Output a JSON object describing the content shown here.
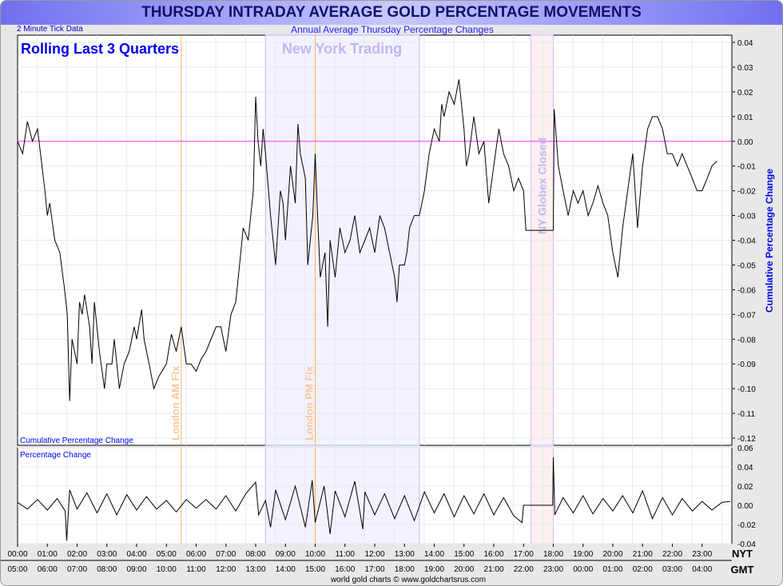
{
  "chart_data": [
    {
      "type": "line",
      "title": "THURSDAY INTRADAY AVERAGE GOLD PERCENTAGE MOVEMENTS",
      "subtitle": "Annual Average Thursday Percentage Changes",
      "note": "2 Minute Tick Data",
      "heading": "Rolling Last 3 Quarters",
      "panel_label": "Cumulative Percentage Change",
      "ylabel": "Cumulative Percentage Change",
      "ylim": [
        -0.12,
        0.04
      ],
      "yticks": [
        "0.04",
        "0.03",
        "0.02",
        "0.01",
        "0.00",
        "-0.01",
        "-0.02",
        "-0.03",
        "-0.04",
        "-0.05",
        "-0.06",
        "-0.07",
        "-0.08",
        "-0.09",
        "-0.10",
        "-0.11",
        "-0.12"
      ],
      "annotations": {
        "ny_trading": "New York Trading",
        "london_am": "London AM Fix",
        "london_pm": "London PM Fix",
        "globex": "NY Globex Closed"
      },
      "x_hours": [
        0,
        0.17,
        0.33,
        0.5,
        0.67,
        0.75,
        0.92,
        1,
        1.08,
        1.25,
        1.42,
        1.58,
        1.67,
        1.75,
        1.83,
        2,
        2.08,
        2.17,
        2.25,
        2.42,
        2.5,
        2.58,
        2.75,
        2.92,
        3,
        3.17,
        3.25,
        3.42,
        3.58,
        3.75,
        3.92,
        4,
        4.17,
        4.25,
        4.42,
        4.58,
        4.75,
        5,
        5.17,
        5.33,
        5.5,
        5.67,
        5.83,
        6,
        6.17,
        6.33,
        6.5,
        6.67,
        6.83,
        7,
        7.17,
        7.33,
        7.5,
        7.58,
        7.75,
        7.92,
        8,
        8.08,
        8.17,
        8.25,
        8.33,
        8.5,
        8.67,
        8.83,
        8.92,
        9,
        9.17,
        9.33,
        9.42,
        9.5,
        9.67,
        9.75,
        9.92,
        10,
        10.08,
        10.17,
        10.33,
        10.42,
        10.5,
        10.67,
        10.83,
        11,
        11.17,
        11.33,
        11.5,
        11.67,
        11.83,
        12,
        12.17,
        12.33,
        12.5,
        12.67,
        12.75,
        12.83,
        13,
        13.08,
        13.17,
        13.33,
        13.5,
        13.67,
        13.83,
        14,
        14.17,
        14.25,
        14.33,
        14.5,
        14.67,
        14.83,
        15,
        15.08,
        15.17,
        15.33,
        15.5,
        15.67,
        15.83,
        16,
        16.17,
        16.33,
        16.5,
        16.67,
        16.83,
        17,
        17.08,
        17.25,
        18,
        18.03,
        18.17,
        18.33,
        18.5,
        18.67,
        18.83,
        19,
        19.17,
        19.33,
        19.5,
        19.67,
        19.83,
        20,
        20.17,
        20.33,
        20.5,
        20.67,
        20.83,
        21,
        21.17,
        21.33,
        21.5,
        21.67,
        21.83,
        22,
        22.17,
        22.33,
        22.5,
        22.67,
        22.83,
        23,
        23.17,
        23.33,
        23.5
      ],
      "values": [
        0,
        -0.005,
        0.008,
        0,
        0.005,
        -0.003,
        -0.02,
        -0.03,
        -0.025,
        -0.04,
        -0.045,
        -0.06,
        -0.07,
        -0.105,
        -0.08,
        -0.09,
        -0.065,
        -0.07,
        -0.062,
        -0.075,
        -0.09,
        -0.065,
        -0.085,
        -0.1,
        -0.09,
        -0.09,
        -0.08,
        -0.1,
        -0.09,
        -0.085,
        -0.075,
        -0.08,
        -0.068,
        -0.08,
        -0.09,
        -0.1,
        -0.095,
        -0.09,
        -0.078,
        -0.085,
        -0.075,
        -0.09,
        -0.09,
        -0.093,
        -0.088,
        -0.085,
        -0.08,
        -0.075,
        -0.075,
        -0.085,
        -0.07,
        -0.065,
        -0.045,
        -0.035,
        -0.04,
        -0.02,
        0.018,
        0,
        -0.01,
        0.005,
        -0.005,
        -0.03,
        -0.05,
        -0.02,
        -0.025,
        -0.04,
        -0.01,
        -0.025,
        0.007,
        -0.005,
        -0.015,
        -0.05,
        -0.03,
        -0.005,
        -0.03,
        -0.055,
        -0.045,
        -0.075,
        -0.04,
        -0.055,
        -0.035,
        -0.045,
        -0.04,
        -0.03,
        -0.045,
        -0.04,
        -0.035,
        -0.045,
        -0.03,
        -0.035,
        -0.045,
        -0.055,
        -0.065,
        -0.05,
        -0.05,
        -0.045,
        -0.035,
        -0.03,
        -0.03,
        -0.02,
        -0.005,
        0.005,
        0,
        0.015,
        0.01,
        0.02,
        0.015,
        0.025,
        0.005,
        -0.01,
        -0.005,
        0.01,
        -0.005,
        0,
        -0.025,
        -0.01,
        0.005,
        -0.005,
        -0.01,
        -0.02,
        -0.015,
        -0.02,
        -0.036,
        -0.036,
        -0.036,
        0.013,
        -0.01,
        -0.02,
        -0.03,
        -0.02,
        -0.025,
        -0.02,
        -0.03,
        -0.025,
        -0.018,
        -0.025,
        -0.03,
        -0.045,
        -0.055,
        -0.035,
        -0.02,
        -0.005,
        -0.035,
        -0.01,
        0.005,
        0.01,
        0.01,
        0.005,
        -0.005,
        -0.005,
        -0.01,
        -0.005,
        -0.01,
        -0.015,
        -0.02,
        -0.02,
        -0.015,
        -0.01,
        -0.008
      ],
      "reference_line": 0
    },
    {
      "type": "line",
      "panel_label": "Percentage Change",
      "ylim": [
        -0.04,
        0.06
      ],
      "yticks": [
        "0.06",
        "0.04",
        "0.02",
        "0.00",
        "-0.02",
        "-0.04"
      ],
      "x_hours": [
        0,
        0.33,
        0.67,
        1,
        1.33,
        1.6,
        1.65,
        1.75,
        2,
        2.33,
        2.67,
        3,
        3.33,
        3.67,
        4,
        4.33,
        4.67,
        5,
        5.33,
        5.67,
        6,
        6.33,
        6.67,
        7,
        7.33,
        7.67,
        8,
        8.1,
        8.33,
        8.5,
        8.67,
        9,
        9.33,
        9.67,
        9.9,
        10,
        10.3,
        10.5,
        10.67,
        11,
        11.33,
        11.6,
        11.67,
        12,
        12.33,
        12.67,
        13,
        13.33,
        13.67,
        14,
        14.33,
        14.67,
        15,
        15.33,
        15.67,
        16,
        16.33,
        16.67,
        16.95,
        17,
        17.25,
        17.98,
        18,
        18.05,
        18.33,
        18.67,
        19,
        19.33,
        19.67,
        20,
        20.33,
        20.67,
        21,
        21.33,
        21.67,
        22,
        22.33,
        22.67,
        23,
        23.33,
        23.67,
        23.95
      ],
      "values": [
        0.003,
        -0.004,
        0.006,
        -0.005,
        0.007,
        -0.006,
        -0.037,
        0.016,
        -0.004,
        0.013,
        -0.008,
        0.012,
        -0.01,
        0.011,
        -0.005,
        0.009,
        -0.004,
        0.005,
        -0.007,
        0.006,
        -0.003,
        0.006,
        -0.004,
        0.01,
        -0.006,
        0.012,
        0.024,
        -0.01,
        0.005,
        -0.023,
        0.016,
        -0.015,
        0.02,
        -0.023,
        0.026,
        -0.018,
        0.02,
        -0.03,
        0.015,
        -0.012,
        0.025,
        -0.025,
        0.014,
        -0.01,
        0.012,
        -0.014,
        0.01,
        -0.016,
        0.014,
        -0.008,
        0.012,
        -0.012,
        0.01,
        -0.009,
        0.012,
        -0.01,
        0.008,
        -0.011,
        -0.018,
        0,
        0,
        0,
        0.05,
        -0.01,
        0.008,
        -0.008,
        0.01,
        -0.009,
        0.007,
        -0.006,
        0.01,
        -0.008,
        0.015,
        -0.014,
        0.008,
        -0.01,
        0.007,
        -0.006,
        0.004,
        -0.005,
        0.003,
        0.004
      ]
    }
  ],
  "x_axis": {
    "nyt_label": "NYT",
    "gmt_label": "GMT",
    "nyt": [
      "00:00",
      "01:00",
      "02:00",
      "03:00",
      "04:00",
      "05:00",
      "06:00",
      "07:00",
      "08:00",
      "09:00",
      "10:00",
      "11:00",
      "12:00",
      "13:00",
      "14:00",
      "15:00",
      "16:00",
      "17:00",
      "18:00",
      "19:00",
      "20:00",
      "21:00",
      "22:00",
      "23:00"
    ],
    "gmt": [
      "05:00",
      "06:00",
      "07:00",
      "08:00",
      "09:00",
      "10:00",
      "11:00",
      "12:00",
      "13:00",
      "14:00",
      "15:00",
      "16:00",
      "17:00",
      "18:00",
      "19:00",
      "20:00",
      "21:00",
      "22:00",
      "23:00",
      "00:00",
      "01:00",
      "02:00",
      "03:00",
      "04:00"
    ]
  },
  "footer": "world gold charts © www.goldchartsrus.com",
  "colors": {
    "ny_band": "#f4f2ff",
    "globex_band": "#fdf0ee",
    "zero_line": "#ff33ff",
    "fix_line": "#ffb060",
    "series": "#000000"
  }
}
